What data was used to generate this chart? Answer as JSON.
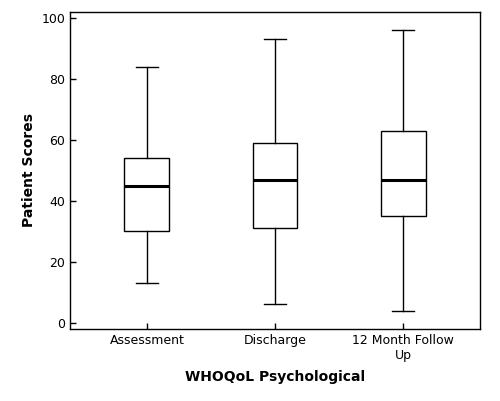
{
  "categories": [
    "Assessment",
    "Discharge",
    "12 Month Follow\nUp"
  ],
  "boxes": [
    {
      "whislo": 13,
      "q1": 30,
      "med": 45,
      "q3": 54,
      "whishi": 84
    },
    {
      "whislo": 6,
      "q1": 31,
      "med": 47,
      "q3": 59,
      "whishi": 93
    },
    {
      "whislo": 4,
      "q1": 35,
      "med": 47,
      "q3": 63,
      "whishi": 96
    }
  ],
  "ylabel": "Patient Scores",
  "xlabel": "WHOQoL Psychological",
  "ylim": [
    -2,
    102
  ],
  "yticks": [
    0,
    20,
    40,
    60,
    80,
    100
  ],
  "background_color": "#ffffff",
  "box_color": "#ffffff",
  "median_color": "#000000",
  "whisker_color": "#000000",
  "box_edge_color": "#000000",
  "label_fontsize": 10,
  "tick_fontsize": 9,
  "box_width": 0.35,
  "positions": [
    1,
    2,
    3
  ],
  "xlim": [
    0.4,
    3.6
  ]
}
